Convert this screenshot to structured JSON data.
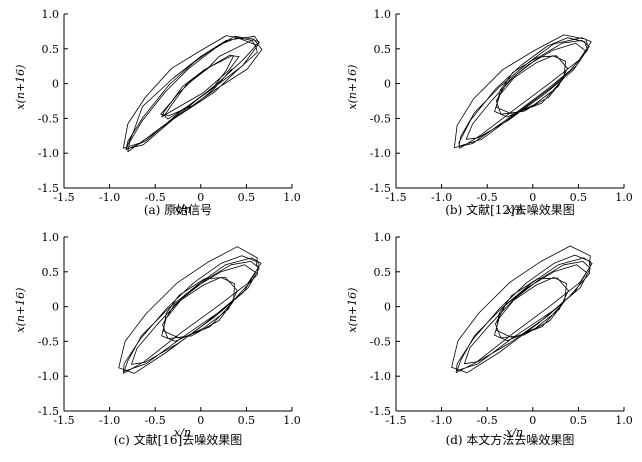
{
  "chart_data": [
    {
      "type": "line",
      "caption": "(a) 原始信号",
      "xlabel": "x/n",
      "ylabel": "x(n+16)",
      "xlim": [
        -1.5,
        1.0
      ],
      "ylim": [
        -1.5,
        1.0
      ],
      "xticks": [
        "-1.5",
        "-1.0",
        "-0.5",
        "0",
        "0.5",
        "1.0"
      ],
      "yticks": [
        "-1.5",
        "-1.0",
        "-0.5",
        "0",
        "0.5",
        "1.0"
      ],
      "grid": false,
      "series": [
        {
          "x": [
            0.6,
            0.56,
            0.28,
            -0.02,
            -0.32,
            -0.61,
            -0.8,
            -0.85,
            -0.66,
            -0.29,
            0.15,
            0.38,
            0.62,
            0.6,
            0.4,
            0.19,
            -0.08,
            -0.35,
            -0.63,
            -0.8,
            -0.82,
            -0.6,
            -0.23,
            0.14,
            0.46,
            0.64,
            0.59,
            0.28,
            0.0,
            -0.3,
            -0.64,
            -0.74,
            -0.82,
            -0.63,
            -0.31,
            0.12,
            0.51,
            0.67,
            0.58,
            0.37,
            0.16,
            -0.13,
            -0.39,
            -0.65,
            -0.78,
            -0.8,
            -0.59,
            -0.2,
            0.2,
            0.47,
            0.64,
            0.57,
            0.2,
            0.1,
            -0.15,
            -0.3,
            -0.4,
            -0.36,
            -0.14,
            0.14,
            0.28,
            0.36,
            0.32,
            0.1,
            -0.1,
            -0.26,
            -0.4,
            -0.43,
            -0.3,
            0.03,
            0.3,
            0.42,
            0.34,
            0.04,
            -0.2,
            -0.32,
            -0.44,
            -0.35,
            -0.06,
            0.14,
            0.34
          ],
          "y": [
            0.54,
            0.62,
            0.69,
            0.46,
            0.22,
            -0.2,
            -0.58,
            -0.93,
            -0.85,
            -0.5,
            -0.12,
            0.17,
            0.45,
            0.56,
            0.66,
            0.55,
            0.3,
            -0.02,
            -0.48,
            -0.83,
            -0.95,
            -0.82,
            -0.41,
            -0.06,
            0.26,
            0.58,
            0.68,
            0.62,
            0.39,
            0.08,
            -0.33,
            -0.7,
            -0.94,
            -0.88,
            -0.52,
            -0.12,
            0.21,
            0.49,
            0.64,
            0.68,
            0.51,
            0.22,
            -0.12,
            -0.55,
            -0.84,
            -0.98,
            -0.78,
            -0.4,
            0.02,
            0.35,
            0.6,
            0.63,
            0.39,
            0.25,
            0.0,
            -0.27,
            -0.46,
            -0.51,
            -0.32,
            -0.05,
            0.19,
            0.4,
            0.41,
            0.24,
            0.04,
            -0.16,
            -0.4,
            -0.48,
            -0.38,
            -0.13,
            0.18,
            0.39,
            0.4,
            0.2,
            -0.04,
            -0.26,
            -0.44,
            -0.46,
            -0.3,
            -0.08,
            0.21
          ]
        }
      ]
    },
    {
      "type": "line",
      "caption": "(b) 文献[12]去噪效果图",
      "xlabel": "x/n",
      "ylabel": "x(n+16)",
      "xlim": [
        -1.5,
        1.0
      ],
      "ylim": [
        -1.5,
        1.0
      ],
      "xticks": [
        "-1.5",
        "-1.0",
        "-0.5",
        "0",
        "0.5",
        "1.0"
      ],
      "yticks": [
        "-1.5",
        "-1.0",
        "-0.5",
        "0",
        "0.5",
        "1.0"
      ],
      "grid": false,
      "series": [
        {
          "x": [
            0.6,
            0.58,
            0.34,
            0.01,
            -0.33,
            -0.65,
            -0.83,
            -0.86,
            -0.66,
            -0.28,
            0.14,
            0.41,
            0.6,
            0.57,
            0.38,
            0.16,
            -0.13,
            -0.41,
            -0.68,
            -0.81,
            -0.8,
            -0.57,
            -0.17,
            0.2,
            0.51,
            0.64,
            0.54,
            0.23,
            -0.05,
            -0.36,
            -0.64,
            -0.79,
            -0.81,
            -0.56,
            -0.18,
            0.2,
            0.48,
            0.62,
            0.54,
            0.32,
            0.08,
            -0.2,
            -0.45,
            -0.66,
            -0.73,
            -0.6,
            -0.26,
            0.14,
            0.45,
            0.58,
            0.47,
            0.22,
            -0.05,
            -0.29,
            -0.4,
            -0.35,
            -0.1,
            0.18,
            0.34,
            0.36,
            0.22,
            0.04,
            -0.2,
            -0.36,
            -0.42,
            -0.28,
            0.02,
            0.28,
            0.38,
            0.26,
            0.05,
            -0.22,
            -0.36,
            -0.4,
            -0.22,
            0.1,
            0.32
          ],
          "y": [
            0.56,
            0.64,
            0.7,
            0.47,
            0.2,
            -0.22,
            -0.6,
            -0.92,
            -0.86,
            -0.51,
            -0.1,
            0.19,
            0.48,
            0.6,
            0.66,
            0.54,
            0.26,
            -0.08,
            -0.52,
            -0.85,
            -0.93,
            -0.74,
            -0.34,
            0.02,
            0.34,
            0.6,
            0.66,
            0.57,
            0.3,
            -0.04,
            -0.42,
            -0.76,
            -0.9,
            -0.8,
            -0.43,
            -0.06,
            0.26,
            0.53,
            0.62,
            0.58,
            0.39,
            0.11,
            -0.24,
            -0.58,
            -0.8,
            -0.78,
            -0.52,
            -0.14,
            0.2,
            0.47,
            0.58,
            0.48,
            0.27,
            0.01,
            -0.25,
            -0.44,
            -0.4,
            -0.19,
            0.08,
            0.32,
            0.4,
            0.3,
            0.09,
            -0.16,
            -0.4,
            -0.48,
            -0.3,
            -0.04,
            0.22,
            0.4,
            0.38,
            0.16,
            -0.1,
            -0.34,
            -0.44,
            -0.28,
            0.05
          ]
        }
      ]
    },
    {
      "type": "line",
      "caption": "(c) 文献[16]去噪效果图",
      "xlabel": "x/n",
      "ylabel": "x(n+16)",
      "xlim": [
        -1.5,
        1.0
      ],
      "ylim": [
        -1.5,
        1.0
      ],
      "xticks": [
        "-1.5",
        "-1.0",
        "-0.5",
        "0",
        "0.5",
        "1.0"
      ],
      "yticks": [
        "-1.5",
        "-1.0",
        "-0.5",
        "0",
        "0.5",
        "1.0"
      ],
      "grid": false,
      "series": [
        {
          "x": [
            0.61,
            0.62,
            0.4,
            0.08,
            -0.26,
            -0.6,
            -0.83,
            -0.9,
            -0.73,
            -0.38,
            0.05,
            0.38,
            0.62,
            0.63,
            0.45,
            0.22,
            -0.08,
            -0.37,
            -0.66,
            -0.84,
            -0.85,
            -0.63,
            -0.23,
            0.18,
            0.52,
            0.66,
            0.56,
            0.27,
            -0.03,
            -0.35,
            -0.65,
            -0.8,
            -0.84,
            -0.6,
            -0.2,
            0.22,
            0.52,
            0.64,
            0.55,
            0.33,
            0.07,
            -0.22,
            -0.48,
            -0.7,
            -0.76,
            -0.61,
            -0.25,
            0.16,
            0.47,
            0.6,
            0.48,
            0.22,
            -0.06,
            -0.3,
            -0.42,
            -0.36,
            -0.1,
            0.2,
            0.36,
            0.37,
            0.22,
            0.03,
            -0.22,
            -0.38,
            -0.43,
            -0.28,
            0.03,
            0.3,
            0.4,
            0.27,
            0.04,
            -0.24,
            -0.38,
            -0.41,
            -0.22,
            0.1,
            0.34
          ],
          "y": [
            0.58,
            0.7,
            0.86,
            0.64,
            0.34,
            -0.1,
            -0.5,
            -0.88,
            -0.96,
            -0.66,
            -0.24,
            0.12,
            0.46,
            0.64,
            0.73,
            0.62,
            0.34,
            -0.02,
            -0.46,
            -0.82,
            -0.96,
            -0.8,
            -0.39,
            0.0,
            0.34,
            0.62,
            0.7,
            0.6,
            0.32,
            -0.02,
            -0.42,
            -0.78,
            -0.93,
            -0.82,
            -0.44,
            -0.06,
            0.27,
            0.55,
            0.65,
            0.6,
            0.4,
            0.1,
            -0.26,
            -0.6,
            -0.83,
            -0.8,
            -0.53,
            -0.14,
            0.21,
            0.49,
            0.6,
            0.5,
            0.28,
            0.01,
            -0.26,
            -0.46,
            -0.42,
            -0.2,
            0.08,
            0.33,
            0.42,
            0.31,
            0.09,
            -0.17,
            -0.42,
            -0.5,
            -0.31,
            -0.04,
            0.23,
            0.42,
            0.4,
            0.16,
            -0.1,
            -0.35,
            -0.46,
            -0.29,
            0.05
          ]
        }
      ]
    },
    {
      "type": "line",
      "caption": "(d) 本文方法去噪效果图",
      "xlabel": "x/n",
      "ylabel": "x(n+16)",
      "xlim": [
        -1.5,
        1.0
      ],
      "ylim": [
        -1.5,
        1.0
      ],
      "xticks": [
        "-1.5",
        "-1.0",
        "-0.5",
        "0",
        "0.5",
        "1.0"
      ],
      "yticks": [
        "-1.5",
        "-1.0",
        "-0.5",
        "0",
        "0.5",
        "1.0"
      ],
      "grid": false,
      "series": [
        {
          "x": [
            0.62,
            0.63,
            0.41,
            0.09,
            -0.25,
            -0.59,
            -0.82,
            -0.89,
            -0.72,
            -0.37,
            0.06,
            0.39,
            0.62,
            0.63,
            0.46,
            0.23,
            -0.07,
            -0.36,
            -0.65,
            -0.83,
            -0.84,
            -0.62,
            -0.22,
            0.19,
            0.52,
            0.65,
            0.56,
            0.28,
            -0.02,
            -0.34,
            -0.64,
            -0.79,
            -0.83,
            -0.6,
            -0.21,
            0.22,
            0.52,
            0.63,
            0.55,
            0.34,
            0.08,
            -0.21,
            -0.47,
            -0.69,
            -0.75,
            -0.6,
            -0.25,
            0.16,
            0.46,
            0.59,
            0.48,
            0.23,
            -0.05,
            -0.3,
            -0.41,
            -0.35,
            -0.1,
            0.19,
            0.35,
            0.37,
            0.23,
            0.04,
            -0.21,
            -0.37,
            -0.42,
            -0.28,
            0.03,
            0.29,
            0.39,
            0.27,
            0.05,
            -0.23,
            -0.37,
            -0.4,
            -0.22,
            0.1,
            0.33
          ],
          "y": [
            0.6,
            0.73,
            0.87,
            0.65,
            0.35,
            -0.09,
            -0.49,
            -0.87,
            -0.95,
            -0.66,
            -0.24,
            0.13,
            0.47,
            0.65,
            0.74,
            0.62,
            0.34,
            -0.02,
            -0.46,
            -0.82,
            -0.95,
            -0.8,
            -0.39,
            0.01,
            0.35,
            0.62,
            0.7,
            0.6,
            0.33,
            -0.02,
            -0.42,
            -0.77,
            -0.92,
            -0.82,
            -0.44,
            -0.06,
            0.27,
            0.55,
            0.65,
            0.6,
            0.4,
            0.1,
            -0.26,
            -0.59,
            -0.82,
            -0.79,
            -0.52,
            -0.14,
            0.21,
            0.49,
            0.6,
            0.5,
            0.28,
            0.02,
            -0.25,
            -0.45,
            -0.41,
            -0.2,
            0.08,
            0.33,
            0.42,
            0.31,
            0.09,
            -0.17,
            -0.41,
            -0.49,
            -0.31,
            -0.04,
            0.23,
            0.41,
            0.4,
            0.16,
            -0.1,
            -0.34,
            -0.45,
            -0.29,
            0.05
          ]
        }
      ]
    }
  ]
}
